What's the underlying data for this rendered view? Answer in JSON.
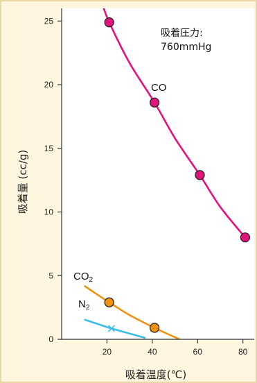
{
  "chart_data": {
    "type": "line",
    "xlabel": "吸着温度(℃)",
    "ylabel": "吸着量 (cc/g)",
    "xlim": [
      0,
      85
    ],
    "ylim": [
      0,
      26
    ],
    "x_ticks": [
      "20",
      "40",
      "60",
      "80"
    ],
    "y_ticks": [
      "0",
      "5",
      "10",
      "15",
      "20",
      "25"
    ],
    "annotation_lines": [
      "吸着圧力:",
      "760mmHg"
    ],
    "series": [
      {
        "name": "CO",
        "color": "#e3127d",
        "marker": "circle",
        "curve": [
          [
            18,
            26.3
          ],
          [
            21,
            24.9
          ],
          [
            30,
            21.7
          ],
          [
            41,
            18.6
          ],
          [
            50,
            15.8
          ],
          [
            61,
            12.9
          ],
          [
            70,
            10.4
          ],
          [
            81,
            8.0
          ]
        ],
        "points": [
          [
            21,
            24.9
          ],
          [
            41,
            18.6
          ],
          [
            61,
            12.9
          ],
          [
            81,
            8.0
          ]
        ]
      },
      {
        "name": "CO2",
        "color": "#ef9210",
        "marker": "circle",
        "curve": [
          [
            10,
            4.2
          ],
          [
            15,
            3.6
          ],
          [
            21,
            2.9
          ],
          [
            30,
            1.9
          ],
          [
            41,
            0.9
          ],
          [
            52,
            0.0
          ]
        ],
        "points": [
          [
            21,
            2.9
          ],
          [
            41,
            0.9
          ]
        ]
      },
      {
        "name": "N2",
        "color": "#3cbde8",
        "marker": "x",
        "curve": [
          [
            10,
            1.55
          ],
          [
            16,
            1.2
          ],
          [
            22,
            0.85
          ],
          [
            30,
            0.45
          ],
          [
            37,
            0.1
          ]
        ],
        "points": [
          [
            22,
            0.85
          ]
        ]
      }
    ],
    "labels": {
      "co": "CO",
      "co2_base": "CO",
      "co2_sub": "2",
      "n2_base": "N",
      "n2_sub": "2"
    }
  }
}
